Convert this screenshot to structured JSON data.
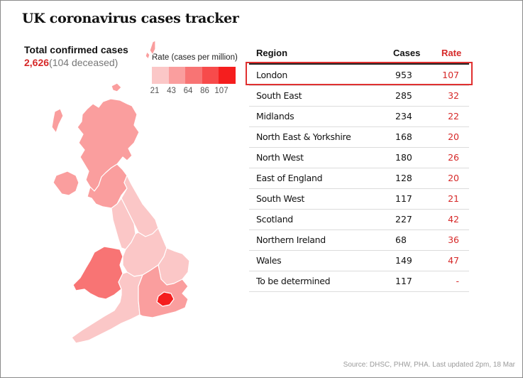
{
  "title": "UK coronavirus cases tracker",
  "summary": {
    "label": "Total confirmed cases",
    "count": "2,626",
    "deceased": "(104 deceased)"
  },
  "legend": {
    "title": "Rate (cases per million)",
    "ticks": [
      "21",
      "43",
      "64",
      "86",
      "107"
    ],
    "colors": [
      "#fbc7c7",
      "#fa9e9e",
      "#f87474",
      "#f74b4b",
      "#f51e1e"
    ]
  },
  "colors": {
    "accent": "#d62828",
    "highlight_border": "#e03030"
  },
  "table": {
    "headers": {
      "region": "Region",
      "cases": "Cases",
      "rate": "Rate"
    },
    "highlighted_row": 0
  },
  "chart_data": {
    "type": "table",
    "columns": [
      "Region",
      "Cases",
      "Rate"
    ],
    "rows": [
      {
        "region": "London",
        "cases": 953,
        "rate": "107"
      },
      {
        "region": "South East",
        "cases": 285,
        "rate": "32"
      },
      {
        "region": "Midlands",
        "cases": 234,
        "rate": "22"
      },
      {
        "region": "North East & Yorkshire",
        "cases": 168,
        "rate": "20"
      },
      {
        "region": "North West",
        "cases": 180,
        "rate": "26"
      },
      {
        "region": "East of England",
        "cases": 128,
        "rate": "20"
      },
      {
        "region": "South West",
        "cases": 117,
        "rate": "21"
      },
      {
        "region": "Scotland",
        "cases": 227,
        "rate": "42"
      },
      {
        "region": "Northern Ireland",
        "cases": 68,
        "rate": "36"
      },
      {
        "region": "Wales",
        "cases": 149,
        "rate": "47"
      },
      {
        "region": "To be determined",
        "cases": 117,
        "rate": "-"
      }
    ]
  },
  "source": "Source: DHSC, PHW, PHA. Last updated 2pm, 18 Mar"
}
